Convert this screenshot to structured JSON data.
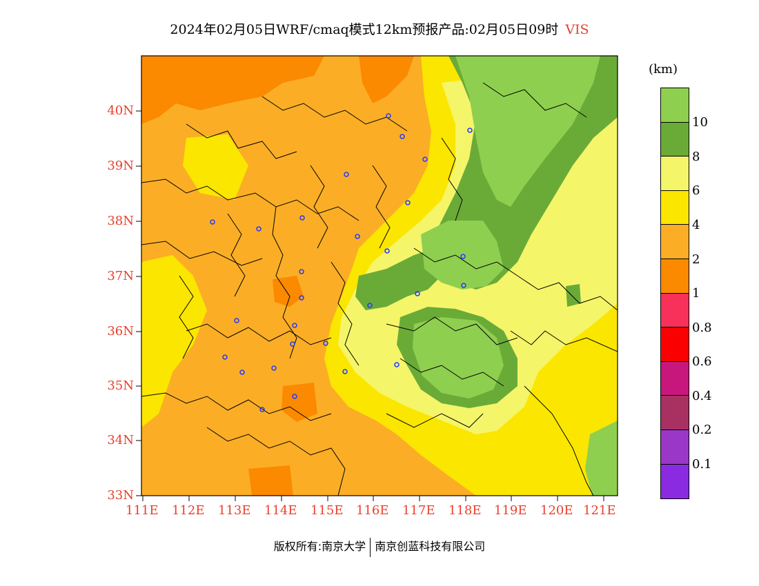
{
  "title": {
    "main": "2024年02月05日WRF/cmaq模式12km预报产品:02月05日09时",
    "variable": "VIS"
  },
  "axes": {
    "lat_labels": [
      "40N",
      "39N",
      "38N",
      "37N",
      "36N",
      "35N",
      "34N",
      "33N"
    ],
    "lon_labels": [
      "111E",
      "112E",
      "113E",
      "114E",
      "115E",
      "116E",
      "117E",
      "118E",
      "119E",
      "120E",
      "121E"
    ],
    "label_color": "#e8402c"
  },
  "legend": {
    "unit": "(km)",
    "labels": [
      "10",
      "8",
      "6",
      "4",
      "2",
      "1",
      "0.8",
      "0.6",
      "0.4",
      "0.2",
      "0.1"
    ],
    "colors": [
      "#8fcf4f",
      "#6aab38",
      "#f5f56a",
      "#fbe600",
      "#fbae25",
      "#fb8a00",
      "#f8315a",
      "#fb0000",
      "#c8177c",
      "#a83162",
      "#9a37c8",
      "#8a2be2"
    ]
  },
  "footer": {
    "copyright": "版权所有:南京大学",
    "company": "南京创蓝科技有限公司"
  },
  "map_colors": {
    "v1": "#fb8a00",
    "v2": "#fbae25",
    "v4": "#fbe600",
    "v6": "#f5f56a",
    "v8": "#6aab38",
    "v10": "#8fcf4f",
    "station": "#2a3bff"
  }
}
